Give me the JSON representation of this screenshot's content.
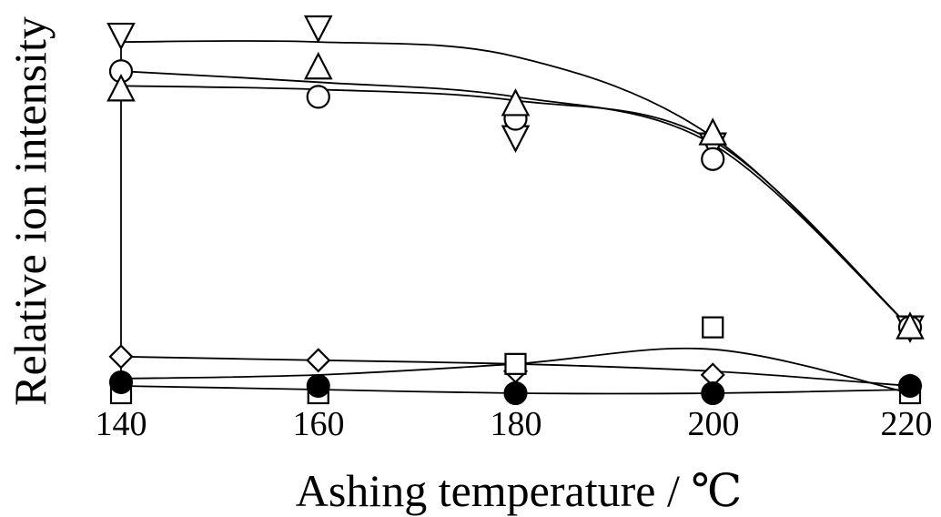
{
  "chart_data": {
    "type": "scatter",
    "title": "",
    "xlabel": "Ashing temperature / ℃",
    "ylabel": "Relative ion intensity",
    "x_ticks": [
      "140",
      "160",
      "180",
      "200",
      "220"
    ],
    "xlim": [
      140,
      220
    ],
    "ylim": [
      0,
      100
    ],
    "grid": false,
    "legend": "none",
    "series": [
      {
        "marker": "triangle-down",
        "filled": false,
        "x": [
          140,
          160,
          180,
          200,
          220
        ],
        "y": [
          98,
          100,
          70,
          68,
          18
        ],
        "fit": [
          [
            140,
            96
          ],
          [
            160,
            96
          ],
          [
            180,
            92
          ],
          [
            200,
            70
          ],
          [
            220,
            18
          ]
        ]
      },
      {
        "marker": "circle",
        "filled": false,
        "x": [
          140,
          160,
          180,
          200,
          220
        ],
        "y": [
          88,
          81,
          75,
          64,
          18
        ],
        "fit": [
          [
            140,
            88
          ],
          [
            160,
            85
          ],
          [
            180,
            81
          ],
          [
            200,
            68
          ],
          [
            220,
            18
          ]
        ]
      },
      {
        "marker": "triangle-up",
        "filled": false,
        "x": [
          140,
          160,
          180,
          200,
          220
        ],
        "y": [
          83,
          89,
          79,
          71,
          18
        ],
        "fit": [
          [
            140,
            84
          ],
          [
            160,
            83
          ],
          [
            180,
            80
          ],
          [
            200,
            69
          ],
          [
            220,
            18
          ]
        ]
      },
      {
        "marker": "diamond",
        "filled": false,
        "x": [
          140,
          160,
          180,
          200,
          220
        ],
        "y": [
          10,
          9,
          6,
          5,
          2
        ],
        "fit": [
          [
            140,
            10
          ],
          [
            160,
            9
          ],
          [
            180,
            8
          ],
          [
            200,
            6
          ],
          [
            220,
            2
          ]
        ]
      },
      {
        "marker": "square",
        "filled": false,
        "x": [
          140,
          160,
          180,
          200,
          220
        ],
        "y": [
          0,
          0,
          8,
          18,
          0
        ],
        "fit": [
          [
            140,
            4
          ],
          [
            160,
            5
          ],
          [
            180,
            8
          ],
          [
            200,
            12
          ],
          [
            220,
            0
          ]
        ]
      },
      {
        "marker": "circle",
        "filled": true,
        "x": [
          140,
          160,
          180,
          200,
          220
        ],
        "y": [
          3,
          2,
          0,
          0,
          2
        ],
        "fit": [
          [
            140,
            2
          ],
          [
            160,
            1
          ],
          [
            180,
            0
          ],
          [
            200,
            0
          ],
          [
            220,
            1
          ]
        ]
      }
    ]
  }
}
